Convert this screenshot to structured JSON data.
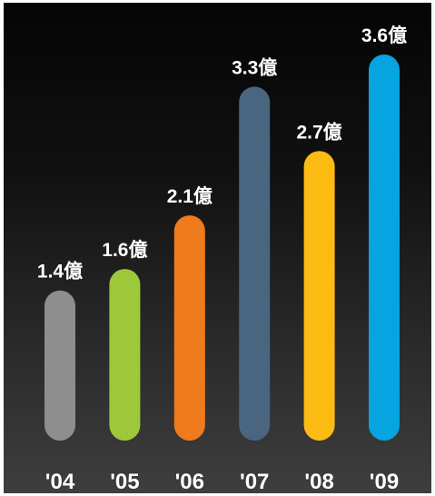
{
  "chart_data": {
    "type": "bar",
    "categories": [
      "'04",
      "'05",
      "'06",
      "'07",
      "'08",
      "'09"
    ],
    "values": [
      1.4,
      1.6,
      2.1,
      3.3,
      2.7,
      3.6
    ],
    "value_suffix": "億",
    "data_labels": [
      "1.4億",
      "1.6億",
      "2.1億",
      "3.3億",
      "2.7億",
      "3.6億"
    ],
    "colors": [
      "#8e8e8e",
      "#9dc83a",
      "#f07b1c",
      "#4a6580",
      "#fbbb12",
      "#06a4e0"
    ],
    "title": "",
    "xlabel": "",
    "ylabel": "",
    "ylim": [
      0,
      3.6
    ],
    "grid": false,
    "legend": "none"
  }
}
